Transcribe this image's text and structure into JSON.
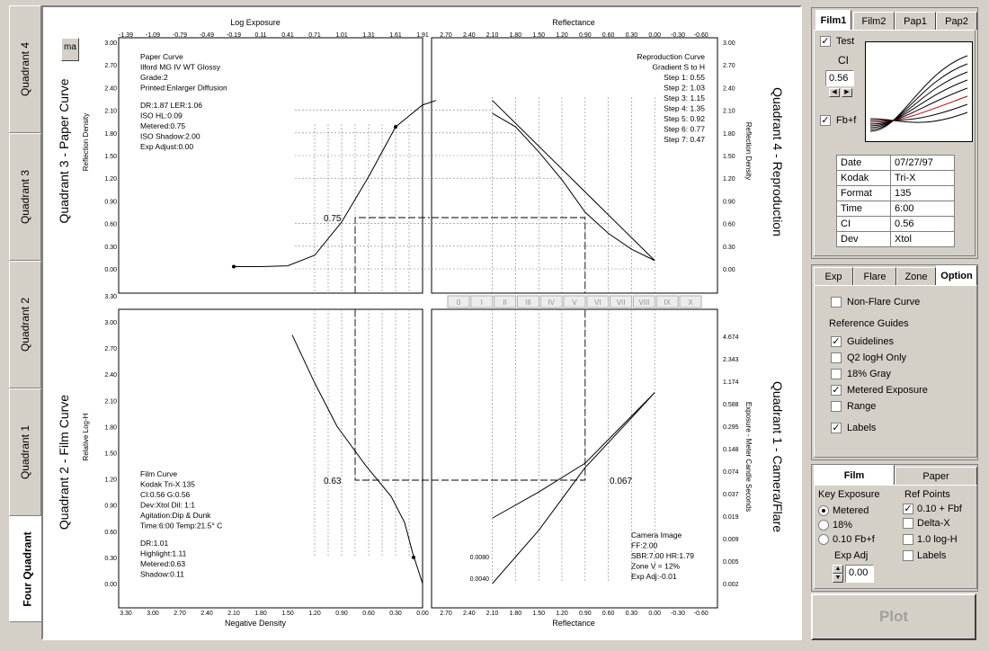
{
  "left_tabs": [
    "Quadrant 4",
    "Quadrant 3",
    "Quadrant 2",
    "Quadrant 1",
    "Four Quadrant"
  ],
  "mini_button": "ma",
  "plot": {
    "q3_title": "Quadrant 3 - Paper Curve",
    "q4_title": "Quadrant 4 - Reproduction",
    "q2_title": "Quadrant 2 - Film Curve",
    "q1_title": "Quadrant 1 - Camera/Flare",
    "top_left_axis_title": "Log Exposure",
    "top_right_axis_title": "Reflectance",
    "bottom_left_axis_title": "Negative Density",
    "bottom_right_axis_title": "Reflectance",
    "q3_ylabel": "Reflection Density",
    "q4_ylabel": "Reflection Density",
    "q2_ylabel": "Relative Log-H",
    "q1_ylabel": "Exposure - Meter Candle Seconds",
    "log_exposure_ticks": [
      "-1.39",
      "-1.09",
      "-0.79",
      "-0.49",
      "-0.19",
      "0.11",
      "0.41",
      "0.71",
      "1.01",
      "1.31",
      "1.61",
      "1.91"
    ],
    "reflectance_ticks": [
      "2.70",
      "2.40",
      "2.10",
      "1.80",
      "1.50",
      "1.20",
      "0.90",
      "0.60",
      "0.30",
      "0.00",
      "-0.30",
      "-0.60"
    ],
    "neg_density_ticks": [
      "3.30",
      "3.00",
      "2.70",
      "2.40",
      "2.10",
      "1.80",
      "1.50",
      "1.20",
      "0.90",
      "0.60",
      "0.30",
      "0.00"
    ],
    "refl_density_ticks": [
      "3.00",
      "2.70",
      "2.40",
      "2.10",
      "1.80",
      "1.50",
      "1.20",
      "0.90",
      "0.60",
      "0.30",
      "0.00"
    ],
    "log_h_ticks": [
      "3.30",
      "3.00",
      "2.70",
      "2.40",
      "2.10",
      "1.80",
      "1.50",
      "1.20",
      "0.90",
      "0.60",
      "0.30",
      "0.00"
    ],
    "exposure_ticks": [
      "4.674",
      "2.343",
      "1.174",
      "0.588",
      "0.295",
      "0.148",
      "0.074",
      "0.037",
      "0.019",
      "0.009",
      "0.005",
      "0.002"
    ],
    "zones": [
      "0",
      "I",
      "II",
      "III",
      "IV",
      "V",
      "VI",
      "VII",
      "VIII",
      "IX",
      "X"
    ],
    "paper_info": [
      "Paper Curve",
      "Ilford MG IV WT  Glossy",
      "Grade:2",
      "Printed:Enlarger Diffusion",
      "DR:1.87  LER:1.06",
      "ISO HL:0.09",
      "Metered:0.75",
      "ISO Shadow:2.00",
      "Exp Adjust:0.00"
    ],
    "repro_info": [
      "Reproduction Curve",
      "Gradient S to H",
      "Step 1: 0.55",
      "Step 2: 1.03",
      "Step 3: 1.15",
      "Step 4: 1.35",
      "Step 5: 0.92",
      "Step 6: 0.77",
      "Step 7: 0.47"
    ],
    "film_info": [
      "Film Curve",
      "Kodak Tri-X 135",
      "CI:0.56  G:0.56",
      "Dev:Xtol  Dil: 1:1",
      "Agitation:Dip & Dunk",
      "Time:6:00  Temp:21.5° C",
      "DR:1.01",
      "Highlight:1.11",
      "Metered:0.63",
      "Shadow:0.11"
    ],
    "camera_info": [
      "Camera Image",
      "FF:2.00",
      "SBR:7.00 HR:1.79",
      "Zone V = 12%",
      "Exp Adj:-0.01"
    ],
    "q3_value_label": "0.75",
    "q2_value_label": "0.63",
    "q1_value_label": "0.067",
    "flare_label_1": "0.0080",
    "flare_label_2": "0.0040"
  },
  "chart_data": [
    {
      "type": "line",
      "title": "Paper Curve",
      "xlabel": "Log Exposure",
      "ylabel": "Reflection Density",
      "xlim": [
        -1.39,
        1.91
      ],
      "ylim": [
        0,
        3.0
      ],
      "series": [
        {
          "name": "Ilford MG IV WT Glossy",
          "x": [
            -0.19,
            0.11,
            0.41,
            0.71,
            1.01,
            1.31,
            1.61,
            1.91,
            2.06
          ],
          "y": [
            0.03,
            0.03,
            0.04,
            0.18,
            0.62,
            1.22,
            1.88,
            2.17,
            2.23
          ]
        }
      ]
    },
    {
      "type": "line",
      "title": "Reproduction Curve",
      "xlabel": "Reflectance",
      "ylabel": "Reflection Density",
      "xlim": [
        2.7,
        -0.6
      ],
      "ylim": [
        0,
        3.0
      ],
      "series": [
        {
          "name": "Reproduction",
          "x": [
            2.1,
            1.8,
            1.5,
            1.2,
            0.9,
            0.6,
            0.3,
            0.0
          ],
          "y": [
            2.06,
            1.88,
            1.55,
            1.18,
            0.75,
            0.47,
            0.26,
            0.11
          ]
        },
        {
          "name": "Reference",
          "x": [
            2.1,
            0.0
          ],
          "y": [
            2.23,
            0.11
          ]
        }
      ]
    },
    {
      "type": "line",
      "title": "Film Curve",
      "xlabel": "Negative Density",
      "ylabel": "Relative Log-H",
      "xlim": [
        3.3,
        0.0
      ],
      "ylim": [
        0,
        3.3
      ],
      "series": [
        {
          "name": "Kodak Tri-X 135",
          "x": [
            1.45,
            1.2,
            0.95,
            0.63,
            0.35,
            0.2,
            0.11,
            0.0
          ],
          "y": [
            2.85,
            2.3,
            1.8,
            1.35,
            1.0,
            0.7,
            0.35,
            0.0
          ]
        }
      ]
    },
    {
      "type": "line",
      "title": "Camera Image",
      "xlabel": "Reflectance",
      "ylabel": "Exposure - Meter Candle Seconds",
      "xlim": [
        2.7,
        -0.6
      ],
      "series": [
        {
          "name": "With flare",
          "x": [
            2.1,
            1.5,
            0.9,
            0.3,
            0.0
          ],
          "y": [
            0.75,
            1.05,
            1.38,
            1.92,
            2.19
          ]
        },
        {
          "name": "No flare",
          "x": [
            2.1,
            1.5,
            0.9,
            0.3,
            0.0
          ],
          "y": [
            0.0,
            0.61,
            1.33,
            1.9,
            2.19
          ]
        }
      ]
    }
  ],
  "film_tabs": [
    "Film1",
    "Film2",
    "Pap1",
    "Pap2"
  ],
  "test_label": "Test",
  "ci_label": "CI",
  "ci_value": "0.56",
  "fbf_label": "Fb+f",
  "film_table": [
    [
      "Date",
      "07/27/97"
    ],
    [
      "Kodak",
      "Tri-X"
    ],
    [
      "Format",
      "135"
    ],
    [
      "Time",
      "6:00"
    ],
    [
      "CI",
      "0.56"
    ],
    [
      "Dev",
      "Xtol"
    ]
  ],
  "option_tabs": [
    "Exp",
    "Flare",
    "Zone",
    "Option"
  ],
  "options": {
    "non_flare": "Non-Flare Curve",
    "ref_guides": "Reference Guides",
    "guidelines": "Guidelines",
    "q2_logh": "Q2 logH Only",
    "gray18": "18% Gray",
    "metered": "Metered Exposure",
    "range": "Range",
    "labels": "Labels"
  },
  "bottom_tabs": [
    "Film",
    "Paper"
  ],
  "key_exposure": {
    "title": "Key Exposure",
    "opt1": "Metered",
    "opt2": "18%",
    "opt3": "0.10 Fb+f",
    "exp_adj_label": "Exp Adj",
    "exp_adj_value": "0.00"
  },
  "ref_points": {
    "title": "Ref Points",
    "opt1": "0.10 + Fbf",
    "opt2": "Delta-X",
    "opt3": "1.0 log-H",
    "opt4": "Labels"
  },
  "plot_button": "Plot"
}
